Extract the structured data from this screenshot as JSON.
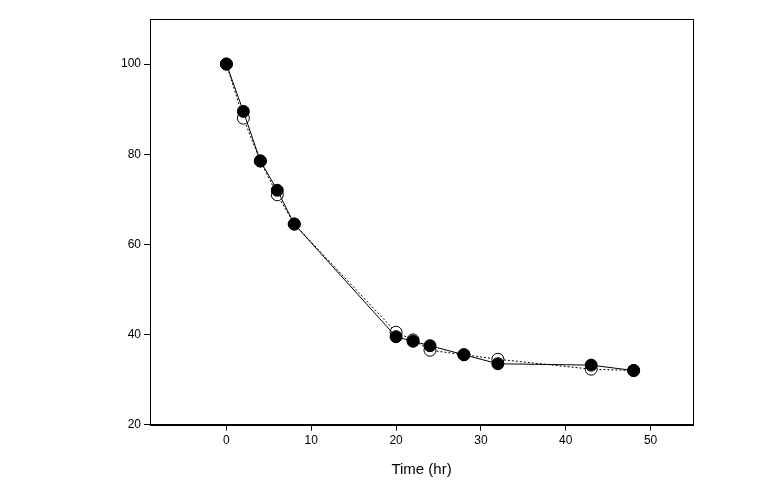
{
  "chart_data": {
    "type": "line",
    "x_label": "Time (hr)",
    "xlim": [
      -9,
      55
    ],
    "xticks": [
      0,
      10,
      20,
      30,
      40,
      50
    ],
    "ylim": [
      20,
      110
    ],
    "yticks": [
      20,
      40,
      60,
      80,
      100
    ],
    "grid": false,
    "series": [
      {
        "color": "#000000",
        "marker": "circle",
        "line_style": "solid",
        "x": [
          0,
          2,
          4,
          6,
          8,
          20,
          22,
          24,
          28,
          32,
          43,
          48
        ],
        "values": [
          100,
          89.5,
          78.5,
          72,
          64.5,
          39.5,
          38.5,
          37.5,
          35.5,
          33.5,
          33.2,
          32
        ]
      },
      {
        "color": "#000000",
        "marker": "open_circle",
        "line_style": "dotted",
        "x": [
          0,
          2,
          4,
          6,
          8,
          20,
          22,
          24,
          28,
          32,
          43,
          48
        ],
        "values": [
          100,
          88,
          78.5,
          71,
          64.5,
          40.5,
          38.8,
          36.5,
          35.5,
          34.5,
          32.3,
          32
        ]
      }
    ]
  }
}
